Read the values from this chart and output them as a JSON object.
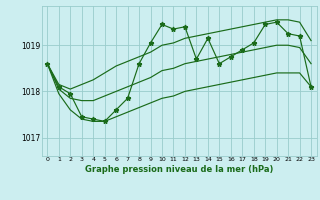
{
  "title": "Graphe pression niveau de la mer (hPa)",
  "bg_color": "#cceef0",
  "grid_color": "#99cccc",
  "line_color": "#1a6b1a",
  "xlim": [
    -0.5,
    23.5
  ],
  "ylim": [
    1016.6,
    1019.85
  ],
  "yticks": [
    1017,
    1018,
    1019
  ],
  "xticks": [
    0,
    1,
    2,
    3,
    4,
    5,
    6,
    7,
    8,
    9,
    10,
    11,
    12,
    13,
    14,
    15,
    16,
    17,
    18,
    19,
    20,
    21,
    22,
    23
  ],
  "hours": [
    0,
    1,
    2,
    3,
    4,
    5,
    6,
    7,
    8,
    9,
    10,
    11,
    12,
    13,
    14,
    15,
    16,
    17,
    18,
    19,
    20,
    21,
    22,
    23
  ],
  "pressure_main": [
    1018.6,
    1018.1,
    1017.95,
    1017.45,
    1017.4,
    1017.35,
    1017.6,
    1017.85,
    1018.6,
    1019.05,
    1019.45,
    1019.35,
    1019.4,
    1018.7,
    1019.15,
    1018.6,
    1018.75,
    1018.9,
    1019.05,
    1019.45,
    1019.5,
    1019.25,
    1019.2,
    1018.1
  ],
  "pressure_upper_env": [
    1018.6,
    1018.15,
    1018.05,
    1018.15,
    1018.25,
    1018.4,
    1018.55,
    1018.65,
    1018.75,
    1018.85,
    1019.0,
    1019.05,
    1019.15,
    1019.2,
    1019.25,
    1019.3,
    1019.35,
    1019.4,
    1019.45,
    1019.5,
    1019.55,
    1019.55,
    1019.5,
    1019.1
  ],
  "pressure_lower_env": [
    1018.6,
    1017.95,
    1017.6,
    1017.4,
    1017.35,
    1017.35,
    1017.45,
    1017.55,
    1017.65,
    1017.75,
    1017.85,
    1017.9,
    1018.0,
    1018.05,
    1018.1,
    1018.15,
    1018.2,
    1018.25,
    1018.3,
    1018.35,
    1018.4,
    1018.4,
    1018.4,
    1018.1
  ],
  "pressure_mid_env": [
    1018.6,
    1018.05,
    1017.85,
    1017.8,
    1017.8,
    1017.9,
    1018.0,
    1018.1,
    1018.2,
    1018.3,
    1018.45,
    1018.5,
    1018.6,
    1018.65,
    1018.7,
    1018.75,
    1018.8,
    1018.85,
    1018.9,
    1018.95,
    1019.0,
    1019.0,
    1018.95,
    1018.6
  ]
}
